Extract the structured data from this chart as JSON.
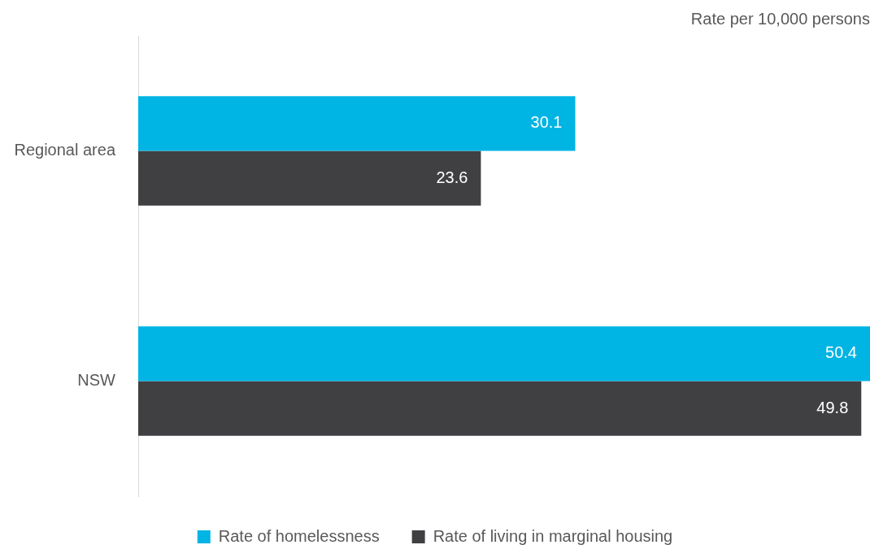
{
  "chart_data": {
    "type": "bar",
    "orientation": "horizontal",
    "title": "Rate per 10,000 persons",
    "categories": [
      "Regional area",
      "NSW"
    ],
    "series": [
      {
        "name": "Rate of homelessness",
        "color": "#00b4e4",
        "values": [
          30.1,
          50.4
        ]
      },
      {
        "name": "Rate of living in marginal housing",
        "color": "#404042",
        "values": [
          23.6,
          49.8
        ]
      }
    ],
    "data_labels": true,
    "legend": "bottom"
  }
}
